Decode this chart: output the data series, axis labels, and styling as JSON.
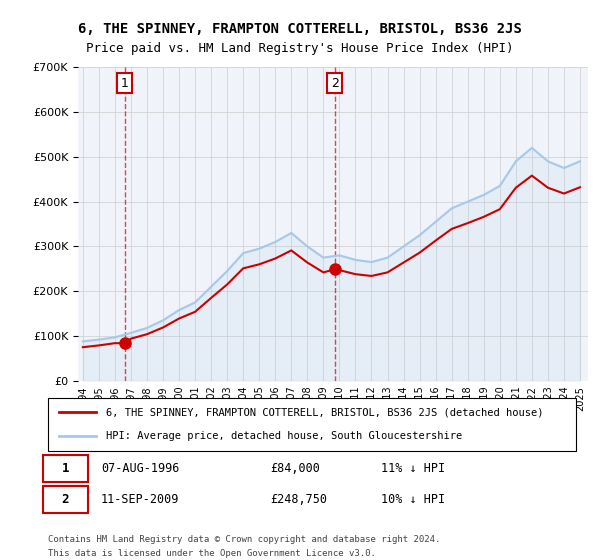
{
  "title": "6, THE SPINNEY, FRAMPTON COTTERELL, BRISTOL, BS36 2JS",
  "subtitle": "Price paid vs. HM Land Registry's House Price Index (HPI)",
  "legend_line1": "6, THE SPINNEY, FRAMPTON COTTERELL, BRISTOL, BS36 2JS (detached house)",
  "legend_line2": "HPI: Average price, detached house, South Gloucestershire",
  "footer1": "Contains HM Land Registry data © Crown copyright and database right 2024.",
  "footer2": "This data is licensed under the Open Government Licence v3.0.",
  "annotation1_label": "1",
  "annotation1_date": "07-AUG-1996",
  "annotation1_price": "£84,000",
  "annotation1_hpi": "11% ↓ HPI",
  "annotation2_label": "2",
  "annotation2_date": "11-SEP-2009",
  "annotation2_price": "£248,750",
  "annotation2_hpi": "10% ↓ HPI",
  "sale1_x": 1996.6,
  "sale1_y": 84000,
  "sale2_x": 2009.7,
  "sale2_y": 248750,
  "hpi_x": [
    1994,
    1995,
    1996,
    1997,
    1998,
    1999,
    2000,
    2001,
    2002,
    2003,
    2004,
    2005,
    2006,
    2007,
    2008,
    2009,
    2010,
    2011,
    2012,
    2013,
    2014,
    2015,
    2016,
    2017,
    2018,
    2019,
    2020,
    2021,
    2022,
    2023,
    2024,
    2025
  ],
  "hpi_y": [
    88000,
    92000,
    97000,
    107000,
    118000,
    135000,
    158000,
    175000,
    210000,
    245000,
    285000,
    295000,
    310000,
    330000,
    300000,
    275000,
    280000,
    270000,
    265000,
    275000,
    300000,
    325000,
    355000,
    385000,
    400000,
    415000,
    435000,
    490000,
    520000,
    490000,
    475000,
    490000
  ],
  "price_x": [
    1994,
    1995,
    1996,
    1996.6,
    1997,
    1998,
    1999,
    2000,
    2001,
    2002,
    2003,
    2004,
    2005,
    2006,
    2007,
    2008,
    2009,
    2009.7,
    2010,
    2011,
    2012,
    2013,
    2014,
    2015,
    2016,
    2017,
    2018,
    2019,
    2020,
    2021,
    2022,
    2023,
    2024,
    2025
  ],
  "price_y": [
    75000,
    79000,
    84000,
    84000,
    94000,
    104000,
    119000,
    139000,
    154000,
    185000,
    215000,
    251000,
    260000,
    273000,
    291000,
    264000,
    242000,
    248750,
    247000,
    238000,
    234000,
    242000,
    264000,
    286000,
    313000,
    339000,
    352000,
    366000,
    383000,
    431000,
    458000,
    431000,
    418000,
    432000
  ],
  "ylim": [
    0,
    700000
  ],
  "xlim_start": 1994,
  "xlim_end": 2025.5,
  "hpi_color": "#a8c8e8",
  "price_color": "#cc0000",
  "bg_color": "#f0f4fa",
  "hatch_color": "#d0d8e8",
  "grid_color": "#cccccc"
}
